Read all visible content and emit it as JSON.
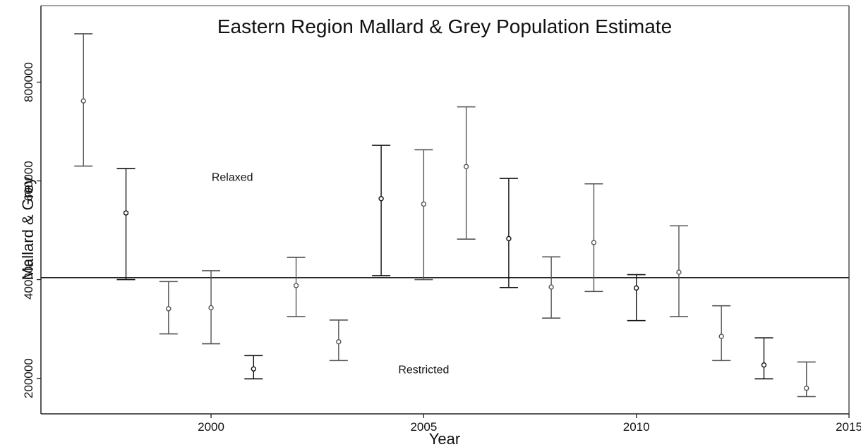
{
  "chart_data": {
    "type": "errorbar",
    "title": "Eastern Region Mallard & Grey Population Estimate",
    "xlabel": "Year",
    "ylabel": "Mallard & Grey",
    "xlim": [
      1996,
      2015
    ],
    "ylim": [
      128000,
      955000
    ],
    "x_ticks": [
      2000,
      2005,
      2010,
      2015
    ],
    "y_ticks": [
      200000,
      400000,
      600000,
      800000
    ],
    "reference_line": 404000,
    "annotations": [
      {
        "text": "Relaxed",
        "x": 2000.5,
        "y": 600000
      },
      {
        "text": "Restricted",
        "x": 2005.0,
        "y": 210000
      }
    ],
    "points": [
      {
        "x": 1997,
        "y": 762000,
        "lower": 630000,
        "upper": 898000
      },
      {
        "x": 1998,
        "y": 535000,
        "lower": 400000,
        "upper": 625000
      },
      {
        "x": 1999,
        "y": 341000,
        "lower": 290000,
        "upper": 396000
      },
      {
        "x": 2000,
        "y": 343000,
        "lower": 270000,
        "upper": 418000
      },
      {
        "x": 2001,
        "y": 219000,
        "lower": 199000,
        "upper": 246000
      },
      {
        "x": 2002,
        "y": 388000,
        "lower": 325000,
        "upper": 445000
      },
      {
        "x": 2003,
        "y": 274000,
        "lower": 236000,
        "upper": 318000
      },
      {
        "x": 2004,
        "y": 564000,
        "lower": 408000,
        "upper": 672000
      },
      {
        "x": 2005,
        "y": 553000,
        "lower": 400000,
        "upper": 663000
      },
      {
        "x": 2006,
        "y": 629000,
        "lower": 482000,
        "upper": 750000
      },
      {
        "x": 2007,
        "y": 483000,
        "lower": 384000,
        "upper": 605000
      },
      {
        "x": 2008,
        "y": 385000,
        "lower": 322000,
        "upper": 446000
      },
      {
        "x": 2009,
        "y": 475000,
        "lower": 376000,
        "upper": 594000
      },
      {
        "x": 2010,
        "y": 383000,
        "lower": 317000,
        "upper": 410000
      },
      {
        "x": 2011,
        "y": 415000,
        "lower": 325000,
        "upper": 509000
      },
      {
        "x": 2012,
        "y": 285000,
        "lower": 236000,
        "upper": 347000
      },
      {
        "x": 2013,
        "y": 227000,
        "lower": 199000,
        "upper": 282000
      },
      {
        "x": 2014,
        "y": 180000,
        "lower": 163000,
        "upper": 233000
      }
    ]
  }
}
